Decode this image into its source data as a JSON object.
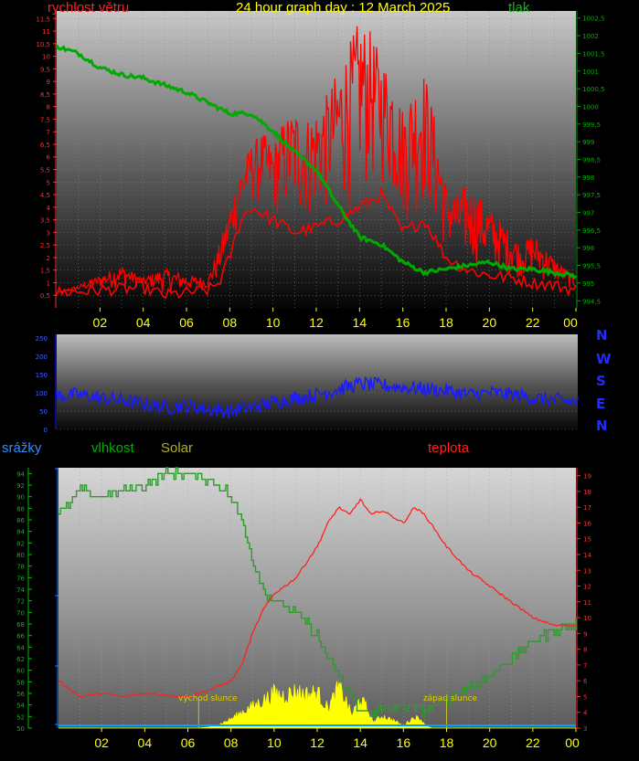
{
  "header": {
    "wind_label": "rychlost větru",
    "title": "24 hour graph day : 12 March 2025",
    "pressure_label": "tlak"
  },
  "legend2": {
    "rain_label": "srážky",
    "humidity_label": "vlhkost",
    "solar_label": "Solar",
    "temp_label": "teplota"
  },
  "compass": [
    "N",
    "W",
    "S",
    "E",
    "N"
  ],
  "annotations": {
    "sunrise": "východ slunce",
    "sunset": "západ slunce"
  },
  "colors": {
    "wind": "#ff0000",
    "pressure": "#00aa00",
    "direction": "#1a1aff",
    "humidity": "#2e9a2e",
    "temperature": "#ff2020",
    "solar": "#ffff00",
    "rain": "#00a0ff",
    "hour_labels": "#ffff00"
  },
  "chart_data": [
    {
      "type": "line",
      "name": "wind-pressure",
      "x_ticks": [
        "02",
        "04",
        "06",
        "08",
        "10",
        "12",
        "14",
        "16",
        "18",
        "20",
        "22",
        "00"
      ],
      "y_left_ticks": [
        "0,5",
        "1",
        "1,5",
        "2",
        "2,5",
        "3",
        "3,5",
        "4",
        "4,5",
        "5",
        "5,5",
        "6",
        "6,5",
        "7",
        "7,5",
        "8",
        "8,5",
        "9",
        "9,5",
        "10",
        "10,5",
        "11",
        "11,5"
      ],
      "y_right_ticks": [
        "994,5",
        "995",
        "995,5",
        "996",
        "996,5",
        "997",
        "997,5",
        "998",
        "998,5",
        "999",
        "999,5",
        "1000",
        "1000,5",
        "1001",
        "1001,5",
        "1002",
        "1002,5"
      ],
      "ylim_left": [
        0,
        11.8
      ],
      "ylim_right": [
        994.3,
        1002.7
      ],
      "gust_hours": [
        0,
        1,
        2,
        3,
        4,
        5,
        6,
        7,
        7.5,
        8,
        8.5,
        9,
        9.5,
        10,
        10.5,
        11,
        11.5,
        12,
        12.5,
        13,
        13.5,
        14,
        14.5,
        15,
        15.5,
        16,
        16.5,
        17,
        17.5,
        18,
        18.5,
        19,
        19.5,
        20,
        20.5,
        21,
        21.5,
        22,
        22.5,
        23,
        24
      ],
      "gust_values": [
        0.6,
        0.9,
        1.3,
        1.7,
        1.2,
        1.6,
        1.3,
        1.2,
        2.5,
        4.0,
        5.5,
        6.5,
        7.0,
        6.5,
        7.5,
        8.0,
        7.5,
        8.0,
        8.5,
        9.5,
        10.5,
        11.5,
        11.0,
        10.0,
        9.5,
        8.0,
        9.0,
        9.5,
        7.5,
        5.0,
        4.5,
        5.0,
        4.5,
        4.0,
        3.5,
        3.0,
        2.5,
        3.0,
        2.5,
        2.0,
        1.2
      ],
      "avg_hours": [
        0,
        2,
        4,
        5,
        6,
        7,
        7.5,
        8,
        8.5,
        9,
        10,
        11,
        12,
        13,
        14,
        15,
        16,
        17,
        18,
        19,
        20,
        21,
        22,
        23,
        24
      ],
      "avg_values": [
        0.6,
        0.7,
        0.8,
        0.5,
        0.6,
        0.7,
        1.0,
        2.0,
        3.5,
        4.0,
        3.5,
        3.0,
        3.2,
        3.5,
        4.0,
        4.5,
        3.0,
        3.5,
        2.0,
        1.5,
        1.3,
        1.2,
        1.0,
        0.9,
        0.7
      ],
      "pressure_hours": [
        0,
        1,
        2,
        3,
        4,
        5,
        6,
        7,
        8,
        9,
        10,
        11,
        12,
        13,
        14,
        15,
        16,
        17,
        18,
        19,
        20,
        21,
        22,
        23,
        24
      ],
      "pressure_values": [
        1001.7,
        1001.5,
        1001.1,
        1000.9,
        1000.8,
        1000.6,
        1000.4,
        1000.1,
        999.8,
        999.8,
        999.3,
        998.7,
        998.2,
        997.2,
        996.3,
        996.1,
        995.6,
        995.3,
        995.4,
        995.5,
        995.6,
        995.4,
        995.4,
        995.3,
        995.2
      ]
    },
    {
      "type": "scatter",
      "name": "wind-direction",
      "y_ticks": [
        "0",
        "50",
        "100",
        "150",
        "200",
        "250"
      ],
      "ylim": [
        0,
        260
      ],
      "hours": [
        0,
        1,
        2,
        3,
        4,
        5,
        6,
        7,
        8,
        9,
        10,
        11,
        12,
        13,
        14,
        15,
        16,
        17,
        18,
        19,
        20,
        21,
        22,
        23,
        24
      ],
      "values": [
        90,
        95,
        85,
        80,
        70,
        60,
        65,
        55,
        50,
        60,
        75,
        85,
        95,
        110,
        125,
        120,
        115,
        110,
        105,
        95,
        100,
        95,
        85,
        80,
        75
      ]
    },
    {
      "type": "line",
      "name": "humidity-temperature-solar",
      "y_left_ticks": [
        "50",
        "52",
        "54",
        "56",
        "58",
        "60",
        "62",
        "64",
        "66",
        "68",
        "70",
        "72",
        "74",
        "76",
        "78",
        "80",
        "82",
        "84",
        "86",
        "88",
        "90",
        "92",
        "94"
      ],
      "y_right_ticks": [
        "3",
        "4",
        "5",
        "6",
        "7",
        "8",
        "9",
        "10",
        "11",
        "12",
        "13",
        "14",
        "15",
        "16",
        "17",
        "18",
        "19"
      ],
      "ylim_left": [
        50,
        95
      ],
      "ylim_right": [
        3,
        19.5
      ],
      "humidity_hours": [
        0,
        0.5,
        1,
        2,
        3,
        4,
        5,
        6,
        7,
        7.5,
        8,
        8.5,
        9,
        9.5,
        10,
        11,
        12,
        12.5,
        13,
        13.5,
        14,
        15,
        16,
        17,
        18,
        19,
        20,
        21,
        22,
        23,
        24
      ],
      "humidity_values": [
        87,
        89,
        91,
        90,
        91,
        92,
        94,
        94,
        93,
        92,
        90,
        86,
        79,
        74,
        72,
        70,
        66,
        62,
        59,
        56,
        53,
        53,
        54,
        53,
        55,
        57,
        59,
        62,
        65,
        67,
        68
      ],
      "temp_hours": [
        0,
        1,
        2,
        3,
        4,
        5,
        6,
        7,
        8,
        8.5,
        9,
        9.5,
        10,
        11,
        12,
        12.5,
        13,
        13.5,
        14,
        14.5,
        15,
        16,
        16.5,
        17,
        18,
        19,
        20,
        21,
        22,
        23,
        24
      ],
      "temp_values": [
        6.0,
        5.0,
        5.2,
        5.0,
        5.2,
        5.1,
        5.0,
        5.4,
        6.0,
        7.0,
        9.0,
        10.5,
        11.5,
        12.5,
        14.5,
        16.0,
        17.0,
        16.5,
        17.5,
        16.5,
        16.8,
        16.0,
        17.0,
        16.5,
        14.5,
        13.0,
        12.0,
        11.0,
        10.0,
        9.5,
        9.5
      ],
      "solar_hours": [
        0,
        6.5,
        7,
        7.5,
        8,
        8.5,
        9,
        9.5,
        10,
        10.5,
        11,
        11.5,
        12,
        12.5,
        13,
        13.3,
        13.6,
        14,
        14.3,
        14.6,
        15,
        15.5,
        16,
        16.5,
        16.8,
        17,
        17.3,
        24
      ],
      "solar_values": [
        0,
        0,
        2,
        8,
        18,
        32,
        44,
        56,
        70,
        66,
        74,
        68,
        72,
        40,
        82,
        58,
        26,
        60,
        40,
        12,
        24,
        16,
        5,
        22,
        18,
        6,
        0,
        0
      ],
      "solar_ylim": [
        0,
        100
      ],
      "rain_values": [
        0,
        0,
        0,
        0,
        0,
        0,
        0,
        0,
        0,
        0,
        0,
        0,
        0,
        0,
        0,
        0,
        0,
        0,
        0,
        0,
        0,
        0,
        0,
        0,
        0
      ]
    }
  ]
}
